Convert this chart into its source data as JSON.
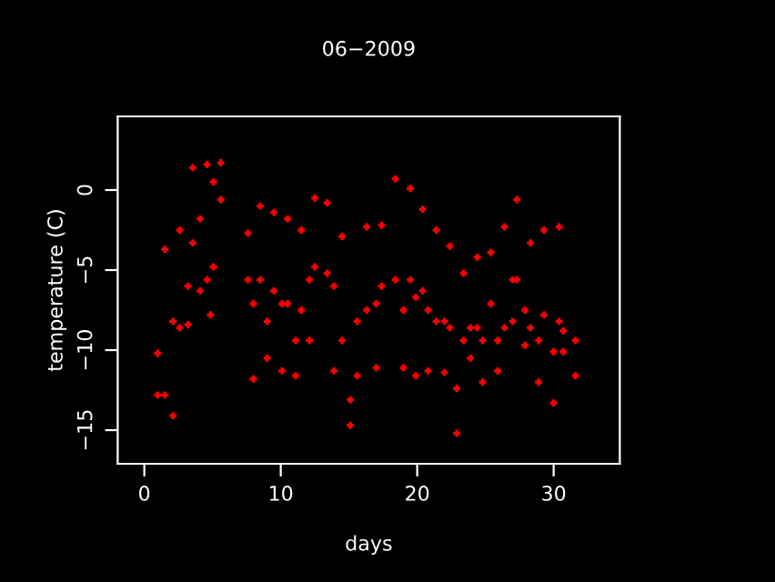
{
  "chart_data": {
    "type": "scatter",
    "title": "06−2009",
    "xlabel": "days",
    "ylabel": "temperature (C)",
    "xlim": [
      -1.95,
      34.85
    ],
    "ylim": [
      -17.1,
      4.6
    ],
    "xticks": [
      0,
      10,
      20,
      30
    ],
    "yticks": [
      {
        "value": 0,
        "label": "0"
      },
      {
        "value": -5,
        "label": "−5"
      },
      {
        "value": -10,
        "label": "−10"
      },
      {
        "value": -15,
        "label": "−15"
      }
    ],
    "grid": false,
    "marker": "cross",
    "series": [
      {
        "color": "#ff0000",
        "x": [
          0.98,
          0.98,
          1.5,
          1.5,
          2.1,
          2.1,
          2.6,
          2.6,
          3.2,
          3.2,
          3.55,
          3.55,
          4.1,
          4.1,
          4.6,
          4.6,
          4.85,
          5.07,
          5.07,
          5.6,
          5.6,
          7.6,
          7.6,
          8.0,
          8.0,
          8.5,
          8.5,
          9.0,
          9.0,
          9.5,
          9.5,
          10.1,
          10.1,
          10.5,
          10.5,
          11.1,
          11.1,
          11.5,
          11.5,
          12.1,
          12.1,
          12.5,
          12.5,
          13.4,
          13.4,
          13.9,
          13.9,
          14.5,
          14.5,
          15.1,
          15.1,
          15.6,
          15.6,
          16.3,
          16.3,
          17.0,
          17.0,
          17.4,
          17.4,
          18.4,
          18.4,
          19.0,
          19.0,
          19.5,
          19.5,
          19.9,
          19.9,
          20.4,
          20.4,
          20.8,
          20.8,
          21.4,
          21.4,
          22.0,
          22.0,
          22.4,
          22.4,
          22.9,
          22.9,
          23.4,
          23.4,
          23.9,
          23.9,
          24.4,
          24.4,
          24.8,
          24.8,
          25.4,
          25.4,
          25.9,
          25.9,
          26.4,
          26.4,
          27.0,
          27.0,
          27.3,
          27.3,
          27.9,
          27.9,
          28.3,
          28.3,
          28.9,
          28.9,
          29.3,
          29.3,
          30.0,
          30.0,
          30.4,
          30.4,
          30.7,
          30.7,
          31.6,
          31.6
        ],
        "values": [
          -10.2,
          -12.8,
          -3.7,
          -12.8,
          -8.2,
          -14.1,
          -2.5,
          -8.6,
          -6.0,
          -8.4,
          1.4,
          -3.3,
          -1.8,
          -6.3,
          1.6,
          -5.6,
          -7.8,
          0.5,
          -4.8,
          1.7,
          -0.6,
          -2.7,
          -5.6,
          -7.1,
          -11.8,
          -1.0,
          -5.6,
          -8.2,
          -10.5,
          -1.4,
          -6.3,
          -7.1,
          -11.3,
          -1.8,
          -7.1,
          -9.4,
          -11.6,
          -2.5,
          -7.5,
          -5.6,
          -9.4,
          -0.5,
          -4.8,
          -0.8,
          -5.2,
          -6.0,
          -11.3,
          -2.9,
          -9.4,
          -13.1,
          -14.7,
          -8.2,
          -11.6,
          -2.3,
          -7.5,
          -7.1,
          -11.1,
          -2.2,
          -6.0,
          0.7,
          -5.6,
          -7.5,
          -11.1,
          0.1,
          -5.6,
          -6.7,
          -11.6,
          -1.2,
          -6.3,
          -7.5,
          -11.3,
          -2.5,
          -8.2,
          -8.2,
          -11.4,
          -3.5,
          -8.6,
          -12.4,
          -15.2,
          -5.2,
          -9.4,
          -8.6,
          -10.5,
          -4.2,
          -8.6,
          -9.4,
          -12.0,
          -3.9,
          -7.1,
          -9.4,
          -11.3,
          -2.3,
          -8.6,
          -5.6,
          -8.2,
          -0.6,
          -5.6,
          -7.5,
          -9.7,
          -3.3,
          -8.6,
          -9.4,
          -12.0,
          -2.5,
          -7.8,
          -10.1,
          -13.3,
          -2.3,
          -8.2,
          -8.8,
          -10.1,
          -9.4,
          -11.6
        ]
      }
    ]
  }
}
